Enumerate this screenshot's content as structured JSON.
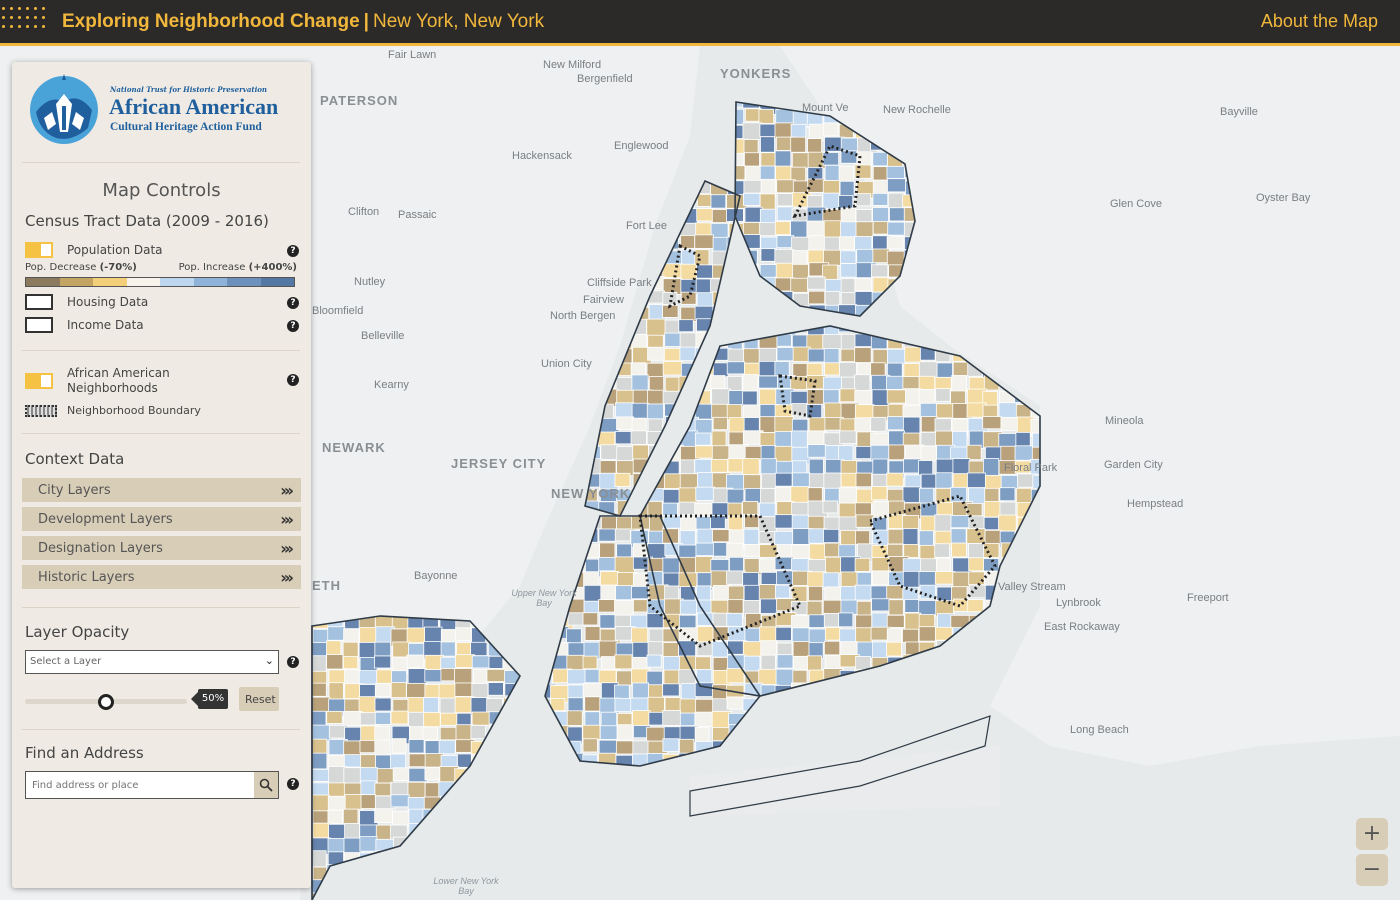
{
  "header": {
    "title": "Exploring Neighborhood Change",
    "separator": "|",
    "location": "New York, New York",
    "about_link": "About the Map"
  },
  "logo": {
    "org_small": "National Trust for Historic Preservation",
    "org_big": "African American",
    "org_sub": "Cultural Heritage Action Fund"
  },
  "panel": {
    "title": "Map Controls",
    "census": {
      "heading": "Census Tract Data (2009 - 2016)",
      "population": "Population Data",
      "decrease_label": "Pop. Decrease",
      "decrease_value": "(-70%)",
      "increase_label": "Pop. Increase",
      "increase_value": "(+400%)",
      "gradient_colors": [
        "#8c7a5f",
        "#c4a462",
        "#f4cf7a",
        "#f7f3ea",
        "#bcd6ef",
        "#8fb3d8",
        "#6c91bd",
        "#5278a3"
      ],
      "housing": "Housing Data",
      "income": "Income Data"
    },
    "neighborhoods": {
      "label": "African American Neighborhoods",
      "boundary": "Neighborhood Boundary"
    },
    "context": {
      "heading": "Context Data",
      "layers": [
        "City Layers",
        "Development Layers",
        "Designation Layers",
        "Historic Layers"
      ]
    },
    "opacity": {
      "heading": "Layer Opacity",
      "select_value": "Select a Layer",
      "value": 50,
      "value_label": "50%",
      "reset": "Reset"
    },
    "address": {
      "heading": "Find an Address",
      "placeholder": "Find address or place"
    }
  },
  "map_labels": [
    {
      "text": "Fair Lawn",
      "size": "normal"
    },
    {
      "text": "New Milford",
      "size": "normal"
    },
    {
      "text": "Bergenfield",
      "size": "normal"
    },
    {
      "text": "YONKERS",
      "size": "big"
    },
    {
      "text": "PATERSON",
      "size": "big"
    },
    {
      "text": "Mount Ve",
      "size": "normal"
    },
    {
      "text": "New Rochelle",
      "size": "normal"
    },
    {
      "text": "Bayville",
      "size": "normal"
    },
    {
      "text": "Hackensack",
      "size": "normal"
    },
    {
      "text": "Englewood",
      "size": "normal"
    },
    {
      "text": "Glen Cove",
      "size": "normal"
    },
    {
      "text": "Oyster Bay",
      "size": "normal"
    },
    {
      "text": "Clifton",
      "size": "normal"
    },
    {
      "text": "Passaic",
      "size": "normal"
    },
    {
      "text": "Fort Lee",
      "size": "normal"
    },
    {
      "text": "Nutley",
      "size": "normal"
    },
    {
      "text": "Cliffside Park",
      "size": "normal"
    },
    {
      "text": "Fairview",
      "size": "normal"
    },
    {
      "text": "North Bergen",
      "size": "normal"
    },
    {
      "text": "Bloomfield",
      "size": "normal"
    },
    {
      "text": "Belleville",
      "size": "normal"
    },
    {
      "text": "Union City",
      "size": "normal"
    },
    {
      "text": "Kearny",
      "size": "normal"
    },
    {
      "text": "Mineola",
      "size": "normal"
    },
    {
      "text": "NEWARK",
      "size": "big"
    },
    {
      "text": "JERSEY CITY",
      "size": "big"
    },
    {
      "text": "NEW YORK",
      "size": "big"
    },
    {
      "text": "Floral Park",
      "size": "normal"
    },
    {
      "text": "Garden City",
      "size": "normal"
    },
    {
      "text": "Hempstead",
      "size": "normal"
    },
    {
      "text": "Bayonne",
      "size": "normal"
    },
    {
      "text": "Upper New York Bay",
      "size": "water"
    },
    {
      "text": "Valley Stream",
      "size": "normal"
    },
    {
      "text": "Lynbrook",
      "size": "normal"
    },
    {
      "text": "Freeport",
      "size": "normal"
    },
    {
      "text": "East Rockaway",
      "size": "normal"
    },
    {
      "text": "Long Beach",
      "size": "normal"
    },
    {
      "text": "Lower New York Bay",
      "size": "water"
    },
    {
      "text": "ETH",
      "size": "big"
    }
  ]
}
